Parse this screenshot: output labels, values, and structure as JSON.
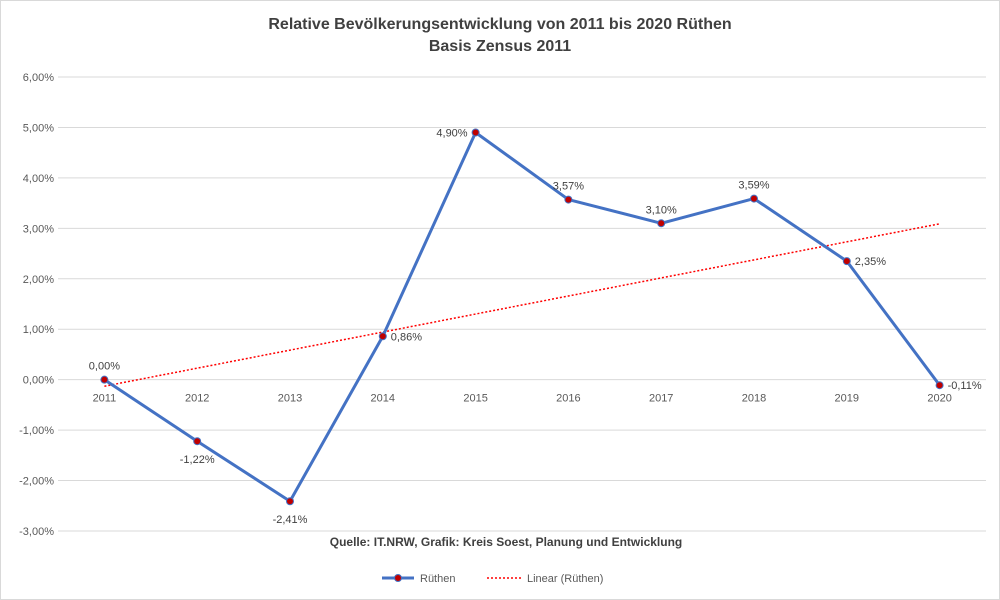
{
  "chart_data": {
    "type": "line",
    "title": "Relative Bevölkerungsentwicklung von 2011 bis 2020 Rüthen",
    "subtitle": "Basis Zensus 2011",
    "categories": [
      "2011",
      "2012",
      "2013",
      "2014",
      "2015",
      "2016",
      "2017",
      "2018",
      "2019",
      "2020"
    ],
    "series": [
      {
        "name": "Rüthen",
        "values": [
          0.0,
          -1.22,
          -2.41,
          0.86,
          4.9,
          3.57,
          3.1,
          3.59,
          2.35,
          -0.11
        ],
        "labels": [
          "0,00%",
          "-1,22%",
          "-2,41%",
          "0,86%",
          "4,90%",
          "3,57%",
          "3,10%",
          "3,59%",
          "2,35%",
          "-0,11%"
        ],
        "color": "#4472c4",
        "marker_color": "#c00000"
      },
      {
        "name": "Linear (Rüthen)",
        "type": "trendline",
        "start": -0.13,
        "end": 3.09,
        "color": "#ff0000"
      }
    ],
    "ylim": [
      -3,
      6
    ],
    "y_ticks": [
      -3,
      -2,
      -1,
      0,
      1,
      2,
      3,
      4,
      5,
      6
    ],
    "y_tick_labels": [
      "-3,00%",
      "-2,00%",
      "-1,00%",
      "0,00%",
      "1,00%",
      "2,00%",
      "3,00%",
      "4,00%",
      "5,00%",
      "6,00%"
    ],
    "grid": true,
    "legend": "bottom-center",
    "source": "Quelle: IT.NRW, Grafik: Kreis Soest, Planung und Entwicklung"
  }
}
